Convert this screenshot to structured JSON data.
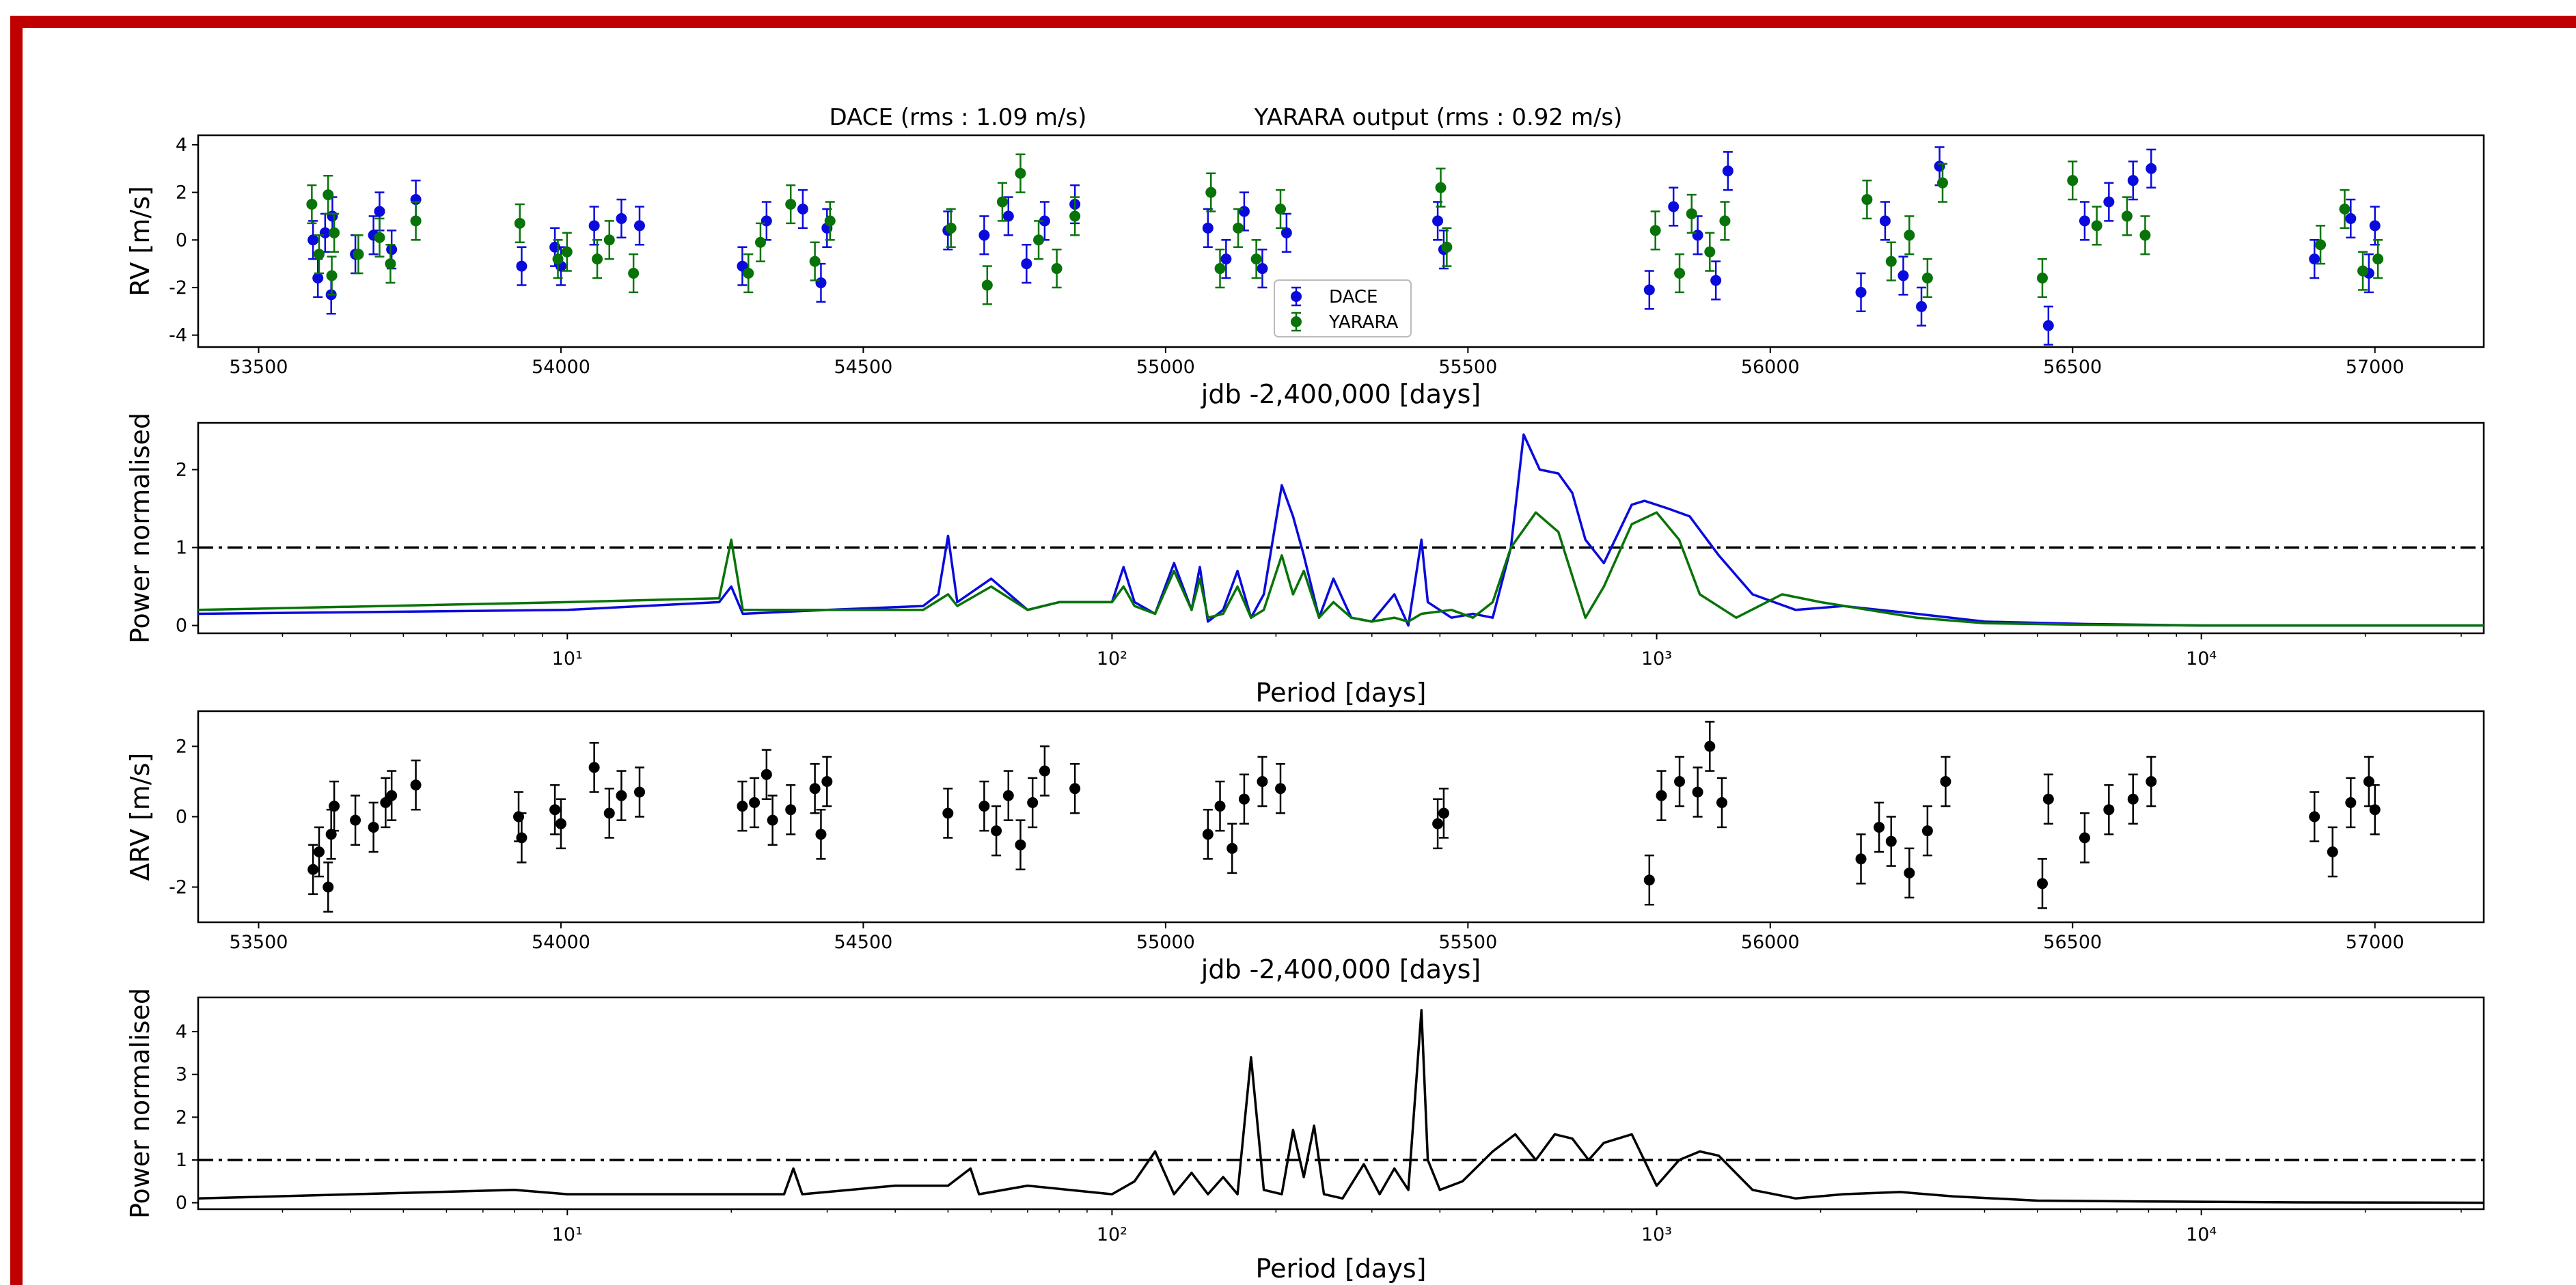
{
  "colors": {
    "frame": "#c00000",
    "dace": "#0a0adc",
    "yarara": "#087308",
    "residual": "#000000",
    "threshold": "#000000"
  },
  "chart_data": [
    {
      "id": "rv",
      "type": "scatter",
      "title_left": "DACE (rms : 1.09 m/s)",
      "title_right": "YARARA output (rms : 0.92 m/s)",
      "xlabel": "jdb -2,400,000 [days]",
      "ylabel": "RV [m/s]",
      "xlim": [
        53400,
        57180
      ],
      "ylim": [
        -4.5,
        4.4
      ],
      "xticks": [
        53500,
        54000,
        54500,
        55000,
        55500,
        56000,
        56500,
        57000
      ],
      "yticks": [
        -4,
        -2,
        0,
        2,
        4
      ],
      "legend": {
        "placement": "center",
        "entries": [
          "DACE",
          "YARARA"
        ]
      },
      "series": [
        {
          "name": "DACE",
          "color_key": "dace",
          "x": [
            53590,
            53598,
            53610,
            53620,
            53622,
            53660,
            53690,
            53700,
            53720,
            53760,
            53935,
            53990,
            54000,
            54055,
            54100,
            54130,
            54300,
            54340,
            54400,
            54430,
            54440,
            54640,
            54700,
            54740,
            54770,
            54800,
            54850,
            55070,
            55100,
            55130,
            55160,
            55200,
            55450,
            55460,
            55800,
            55840,
            55880,
            55910,
            55930,
            56150,
            56190,
            56220,
            56250,
            56280,
            56460,
            56520,
            56560,
            56600,
            56630,
            56900,
            56960,
            56990,
            57000
          ],
          "y": [
            0.0,
            -1.6,
            0.3,
            -2.3,
            1.0,
            -0.6,
            0.2,
            1.2,
            -0.4,
            1.7,
            -1.1,
            -0.3,
            -1.1,
            0.6,
            0.9,
            0.6,
            -1.1,
            0.8,
            1.3,
            -1.8,
            0.5,
            0.4,
            0.2,
            1.0,
            -1.0,
            0.8,
            1.5,
            0.5,
            -0.8,
            1.2,
            -1.2,
            0.3,
            0.8,
            -0.4,
            -2.1,
            1.4,
            0.2,
            -1.7,
            2.9,
            -2.2,
            0.8,
            -1.5,
            -2.8,
            3.1,
            -3.6,
            0.8,
            1.6,
            2.5,
            3.0,
            -0.8,
            0.9,
            -1.4,
            0.6
          ],
          "err": [
            0.8,
            0.8,
            0.8,
            0.8,
            0.8,
            0.8,
            0.8,
            0.8,
            0.8,
            0.8,
            0.8,
            0.8,
            0.8,
            0.8,
            0.8,
            0.8,
            0.8,
            0.8,
            0.8,
            0.8,
            0.8,
            0.8,
            0.8,
            0.8,
            0.8,
            0.8,
            0.8,
            0.8,
            0.8,
            0.8,
            0.8,
            0.8,
            0.8,
            0.8,
            0.8,
            0.8,
            0.8,
            0.8,
            0.8,
            0.8,
            0.8,
            0.8,
            0.8,
            0.8,
            0.8,
            0.8,
            0.8,
            0.8,
            0.8,
            0.8,
            0.8,
            0.8,
            0.8
          ]
        },
        {
          "name": "YARARA",
          "color_key": "yarara",
          "x": [
            53588,
            53600,
            53615,
            53621,
            53625,
            53665,
            53700,
            53718,
            53760,
            53932,
            53995,
            54010,
            54060,
            54080,
            54120,
            54310,
            54330,
            54380,
            54420,
            54445,
            54645,
            54705,
            54730,
            54760,
            54790,
            54820,
            54850,
            55075,
            55090,
            55120,
            55150,
            55190,
            55455,
            55465,
            55810,
            55850,
            55870,
            55900,
            55925,
            56160,
            56200,
            56230,
            56260,
            56285,
            56450,
            56500,
            56540,
            56590,
            56620,
            56910,
            56950,
            56980,
            57005
          ],
          "y": [
            1.5,
            -0.6,
            1.9,
            -1.5,
            0.3,
            -0.6,
            0.1,
            -1.0,
            0.8,
            0.7,
            -0.8,
            -0.5,
            -0.8,
            0.0,
            -1.4,
            -1.4,
            -0.1,
            1.5,
            -0.9,
            0.8,
            0.5,
            -1.9,
            1.6,
            2.8,
            0.0,
            -1.2,
            1.0,
            2.0,
            -1.2,
            0.5,
            -0.8,
            1.3,
            2.2,
            -0.3,
            0.4,
            -1.4,
            1.1,
            -0.5,
            0.8,
            1.7,
            -0.9,
            0.2,
            -1.6,
            2.4,
            -1.6,
            2.5,
            0.6,
            1.0,
            0.2,
            -0.2,
            1.3,
            -1.3,
            -0.8
          ],
          "err": [
            0.8,
            0.8,
            0.8,
            0.8,
            0.8,
            0.8,
            0.8,
            0.8,
            0.8,
            0.8,
            0.8,
            0.8,
            0.8,
            0.8,
            0.8,
            0.8,
            0.8,
            0.8,
            0.8,
            0.8,
            0.8,
            0.8,
            0.8,
            0.8,
            0.8,
            0.8,
            0.8,
            0.8,
            0.8,
            0.8,
            0.8,
            0.8,
            0.8,
            0.8,
            0.8,
            0.8,
            0.8,
            0.8,
            0.8,
            0.8,
            0.8,
            0.8,
            0.8,
            0.8,
            0.8,
            0.8,
            0.8,
            0.8,
            0.8,
            0.8,
            0.8,
            0.8,
            0.8
          ]
        }
      ]
    },
    {
      "id": "periodogram",
      "type": "line",
      "xlabel": "Period [days]",
      "ylabel": "Power normalised",
      "xscale": "log",
      "xlim": [
        2.1,
        33000
      ],
      "ylim": [
        -0.1,
        2.6
      ],
      "xticks": [
        10,
        100,
        1000,
        10000
      ],
      "xticklabels": [
        "10¹",
        "10²",
        "10³",
        "10⁴"
      ],
      "yticks": [
        0,
        1,
        2
      ],
      "threshold": 1,
      "series": [
        {
          "name": "DACE",
          "color_key": "dace",
          "x": [
            2.1,
            10,
            19,
            20,
            21,
            30,
            45,
            48,
            50,
            52,
            60,
            70,
            80,
            100,
            105,
            110,
            120,
            130,
            140,
            145,
            150,
            160,
            170,
            180,
            190,
            205,
            215,
            225,
            240,
            255,
            275,
            300,
            330,
            350,
            370,
            380,
            420,
            460,
            500,
            540,
            570,
            610,
            660,
            700,
            740,
            800,
            900,
            950,
            1050,
            1150,
            1300,
            1500,
            1800,
            2200,
            3000,
            4000,
            6000,
            10000,
            33000
          ],
          "y": [
            0.15,
            0.2,
            0.3,
            0.5,
            0.15,
            0.2,
            0.25,
            0.4,
            1.15,
            0.3,
            0.6,
            0.2,
            0.3,
            0.3,
            0.75,
            0.3,
            0.15,
            0.8,
            0.2,
            0.75,
            0.05,
            0.2,
            0.7,
            0.1,
            0.4,
            1.8,
            1.4,
            0.9,
            0.1,
            0.6,
            0.1,
            0.05,
            0.4,
            0.0,
            1.1,
            0.3,
            0.1,
            0.15,
            0.1,
            1.0,
            2.45,
            2.0,
            1.95,
            1.7,
            1.1,
            0.8,
            1.55,
            1.6,
            1.5,
            1.4,
            0.9,
            0.4,
            0.2,
            0.25,
            0.15,
            0.05,
            0.02,
            0.0,
            0.0
          ]
        },
        {
          "name": "YARARA",
          "color_key": "yarara",
          "x": [
            2.1,
            10,
            19,
            20,
            21,
            30,
            45,
            50,
            52,
            60,
            70,
            80,
            100,
            105,
            110,
            120,
            130,
            140,
            145,
            150,
            160,
            170,
            180,
            190,
            205,
            215,
            225,
            240,
            255,
            275,
            300,
            330,
            350,
            370,
            420,
            460,
            500,
            540,
            600,
            660,
            740,
            800,
            900,
            1000,
            1100,
            1200,
            1400,
            1700,
            2000,
            3000,
            4000,
            6000,
            10000,
            33000
          ],
          "y": [
            0.2,
            0.3,
            0.35,
            1.1,
            0.2,
            0.2,
            0.2,
            0.4,
            0.25,
            0.5,
            0.2,
            0.3,
            0.3,
            0.5,
            0.25,
            0.15,
            0.7,
            0.2,
            0.6,
            0.1,
            0.15,
            0.5,
            0.1,
            0.2,
            0.9,
            0.4,
            0.7,
            0.1,
            0.3,
            0.1,
            0.05,
            0.1,
            0.05,
            0.15,
            0.2,
            0.1,
            0.3,
            1.0,
            1.45,
            1.2,
            0.1,
            0.5,
            1.3,
            1.45,
            1.1,
            0.4,
            0.1,
            0.4,
            0.3,
            0.1,
            0.03,
            0.01,
            0.0,
            0.0
          ]
        }
      ]
    },
    {
      "id": "residuals",
      "type": "scatter",
      "xlabel": "jdb -2,400,000 [days]",
      "ylabel": "ΔRV [m/s]",
      "xlim": [
        53400,
        57180
      ],
      "ylim": [
        -3.0,
        3.0
      ],
      "xticks": [
        53500,
        54000,
        54500,
        55000,
        55500,
        56000,
        56500,
        57000
      ],
      "yticks": [
        -2,
        0,
        2
      ],
      "series": [
        {
          "name": "",
          "color_key": "residual",
          "x": [
            53590,
            53600,
            53615,
            53620,
            53625,
            53660,
            53690,
            53710,
            53720,
            53760,
            53930,
            53935,
            53990,
            54000,
            54055,
            54080,
            54100,
            54130,
            54300,
            54320,
            54340,
            54350,
            54380,
            54420,
            54430,
            54440,
            54640,
            54700,
            54720,
            54740,
            54760,
            54780,
            54800,
            54850,
            55070,
            55090,
            55110,
            55130,
            55160,
            55190,
            55450,
            55460,
            55800,
            55820,
            55850,
            55880,
            55900,
            55920,
            56150,
            56180,
            56200,
            56230,
            56260,
            56290,
            56450,
            56460,
            56520,
            56560,
            56600,
            56630,
            56900,
            56930,
            56960,
            56990,
            57000
          ],
          "y": [
            -1.5,
            -1.0,
            -2.0,
            -0.5,
            0.3,
            -0.1,
            -0.3,
            0.4,
            0.6,
            0.9,
            0.0,
            -0.6,
            0.2,
            -0.2,
            1.4,
            0.1,
            0.6,
            0.7,
            0.3,
            0.4,
            1.2,
            -0.1,
            0.2,
            0.8,
            -0.5,
            1.0,
            0.1,
            0.3,
            -0.4,
            0.6,
            -0.8,
            0.4,
            1.3,
            0.8,
            -0.5,
            0.3,
            -0.9,
            0.5,
            1.0,
            0.8,
            -0.2,
            0.1,
            -1.8,
            0.6,
            1.0,
            0.7,
            2.0,
            0.4,
            -1.2,
            -0.3,
            -0.7,
            -1.6,
            -0.4,
            1.0,
            -1.9,
            0.5,
            -0.6,
            0.2,
            0.5,
            1.0,
            0.0,
            -1.0,
            0.4,
            1.0,
            0.2
          ],
          "err": [
            0.7,
            0.7,
            0.7,
            0.7,
            0.7,
            0.7,
            0.7,
            0.7,
            0.7,
            0.7,
            0.7,
            0.7,
            0.7,
            0.7,
            0.7,
            0.7,
            0.7,
            0.7,
            0.7,
            0.7,
            0.7,
            0.7,
            0.7,
            0.7,
            0.7,
            0.7,
            0.7,
            0.7,
            0.7,
            0.7,
            0.7,
            0.7,
            0.7,
            0.7,
            0.7,
            0.7,
            0.7,
            0.7,
            0.7,
            0.7,
            0.7,
            0.7,
            0.7,
            0.7,
            0.7,
            0.7,
            0.7,
            0.7,
            0.7,
            0.7,
            0.7,
            0.7,
            0.7,
            0.7,
            0.7,
            0.7,
            0.7,
            0.7,
            0.7,
            0.7,
            0.7,
            0.7,
            0.7,
            0.7,
            0.7
          ]
        }
      ]
    },
    {
      "id": "residual_periodogram",
      "type": "line",
      "xlabel": "Period [days]",
      "ylabel": "Power normalised",
      "xscale": "log",
      "xlim": [
        2.1,
        33000
      ],
      "ylim": [
        -0.15,
        4.8
      ],
      "xticks": [
        10,
        100,
        1000,
        10000
      ],
      "xticklabels": [
        "10¹",
        "10²",
        "10³",
        "10⁴"
      ],
      "yticks": [
        0,
        1,
        2,
        3,
        4
      ],
      "threshold": 1,
      "series": [
        {
          "name": "",
          "color_key": "residual",
          "x": [
            2.1,
            8,
            10,
            25,
            26,
            27,
            40,
            50,
            55,
            57,
            70,
            100,
            110,
            120,
            130,
            140,
            150,
            160,
            170,
            180,
            190,
            205,
            215,
            225,
            235,
            245,
            265,
            290,
            310,
            330,
            350,
            370,
            380,
            400,
            440,
            500,
            550,
            600,
            650,
            700,
            750,
            800,
            900,
            1000,
            1100,
            1200,
            1300,
            1500,
            1800,
            2200,
            2800,
            3500,
            5000,
            8000,
            15000,
            33000
          ],
          "y": [
            0.1,
            0.3,
            0.2,
            0.2,
            0.8,
            0.2,
            0.4,
            0.4,
            0.8,
            0.2,
            0.4,
            0.2,
            0.5,
            1.2,
            0.2,
            0.7,
            0.2,
            0.6,
            0.2,
            3.4,
            0.3,
            0.2,
            1.7,
            0.6,
            1.8,
            0.2,
            0.1,
            0.9,
            0.2,
            0.8,
            0.3,
            4.5,
            1.0,
            0.3,
            0.5,
            1.2,
            1.6,
            1.0,
            1.6,
            1.5,
            1.0,
            1.4,
            1.6,
            0.4,
            1.0,
            1.2,
            1.1,
            0.3,
            0.1,
            0.2,
            0.25,
            0.15,
            0.05,
            0.03,
            0.01,
            0.0
          ]
        }
      ]
    }
  ]
}
